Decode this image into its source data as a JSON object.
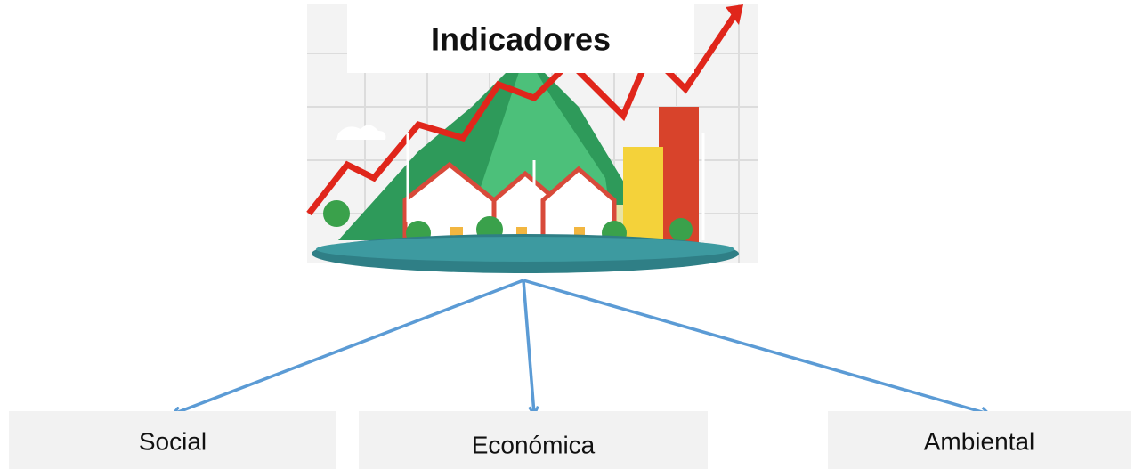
{
  "header": {
    "title": "Indicadores"
  },
  "nodes": [
    {
      "label": "Social"
    },
    {
      "label": "Económica"
    },
    {
      "label": "Ambiental"
    }
  ]
}
